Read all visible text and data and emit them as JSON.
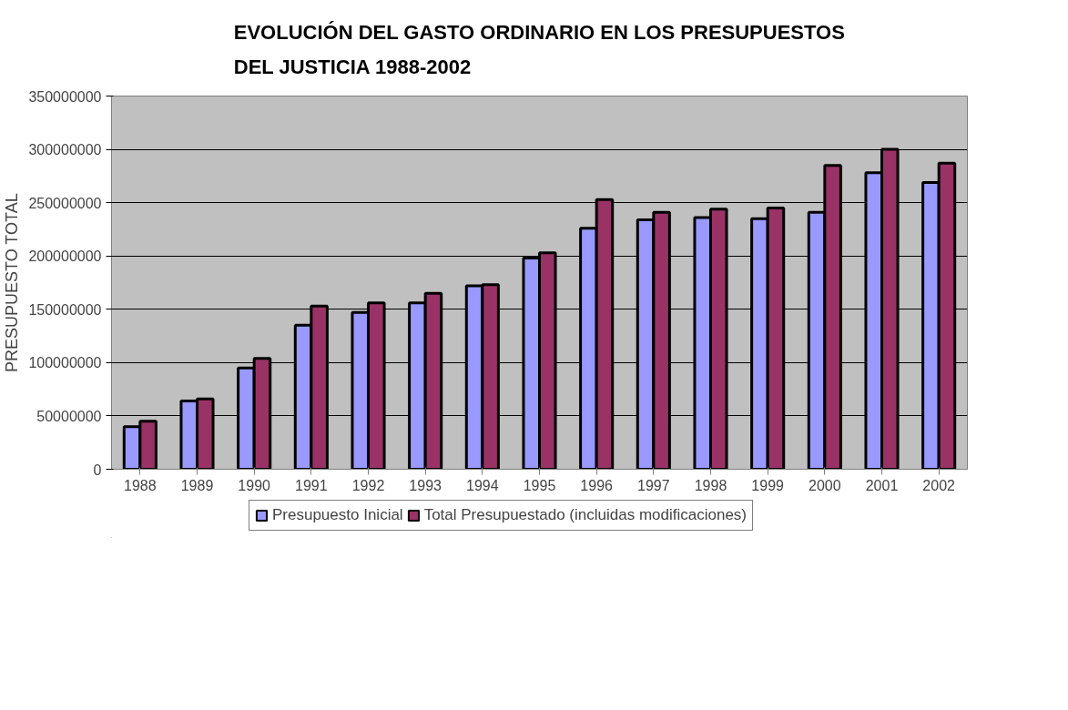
{
  "chart_data": {
    "type": "bar",
    "title": "EVOLUCIÓN DEL GASTO ORDINARIO EN LOS PRESUPUESTOS DEL JUSTICIA 1988-2002",
    "ylabel": "PRESUPUESTO TOTAL",
    "categories": [
      "1988",
      "1989",
      "1990",
      "1991",
      "1992",
      "1993",
      "1994",
      "1995",
      "1996",
      "1997",
      "1998",
      "1999",
      "2000",
      "2001",
      "2002"
    ],
    "series": [
      {
        "name": "Presupuesto Inicial",
        "color": "#9999ff",
        "values": [
          40000000,
          64000000,
          95000000,
          135000000,
          147000000,
          156000000,
          172000000,
          198000000,
          226000000,
          234000000,
          236000000,
          235000000,
          241000000,
          278000000,
          269000000
        ]
      },
      {
        "name": "Total Presupuestado (incluidas modificaciones)",
        "color": "#993366",
        "values": [
          45000000,
          66000000,
          104000000,
          153000000,
          156000000,
          165000000,
          173000000,
          203000000,
          253000000,
          241000000,
          244000000,
          245000000,
          285000000,
          300000000,
          287000000
        ]
      }
    ],
    "ylim": [
      0,
      350000000
    ],
    "yticks": [
      0,
      50000000,
      100000000,
      150000000,
      200000000,
      250000000,
      300000000,
      350000000
    ],
    "grid": "y",
    "legend": "bottom"
  }
}
